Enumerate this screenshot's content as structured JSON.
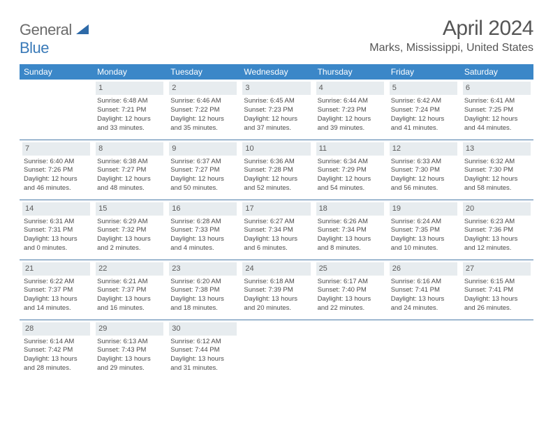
{
  "logo": {
    "word1": "General",
    "word2": "Blue"
  },
  "title": "April 2024",
  "location": "Marks, Mississippi, United States",
  "colors": {
    "header_bg": "#3b87c8",
    "header_fg": "#ffffff",
    "daynum_bg": "#e7ecef",
    "rule": "#4a7aa8",
    "text": "#4a4a4a",
    "logo_gray": "#6b6b6b",
    "logo_blue": "#3a7ab8"
  },
  "weekdays": [
    "Sunday",
    "Monday",
    "Tuesday",
    "Wednesday",
    "Thursday",
    "Friday",
    "Saturday"
  ],
  "weeks": [
    [
      null,
      {
        "n": "1",
        "sr": "6:48 AM",
        "ss": "7:21 PM",
        "dl": "12 hours and 33 minutes."
      },
      {
        "n": "2",
        "sr": "6:46 AM",
        "ss": "7:22 PM",
        "dl": "12 hours and 35 minutes."
      },
      {
        "n": "3",
        "sr": "6:45 AM",
        "ss": "7:23 PM",
        "dl": "12 hours and 37 minutes."
      },
      {
        "n": "4",
        "sr": "6:44 AM",
        "ss": "7:23 PM",
        "dl": "12 hours and 39 minutes."
      },
      {
        "n": "5",
        "sr": "6:42 AM",
        "ss": "7:24 PM",
        "dl": "12 hours and 41 minutes."
      },
      {
        "n": "6",
        "sr": "6:41 AM",
        "ss": "7:25 PM",
        "dl": "12 hours and 44 minutes."
      }
    ],
    [
      {
        "n": "7",
        "sr": "6:40 AM",
        "ss": "7:26 PM",
        "dl": "12 hours and 46 minutes."
      },
      {
        "n": "8",
        "sr": "6:38 AM",
        "ss": "7:27 PM",
        "dl": "12 hours and 48 minutes."
      },
      {
        "n": "9",
        "sr": "6:37 AM",
        "ss": "7:27 PM",
        "dl": "12 hours and 50 minutes."
      },
      {
        "n": "10",
        "sr": "6:36 AM",
        "ss": "7:28 PM",
        "dl": "12 hours and 52 minutes."
      },
      {
        "n": "11",
        "sr": "6:34 AM",
        "ss": "7:29 PM",
        "dl": "12 hours and 54 minutes."
      },
      {
        "n": "12",
        "sr": "6:33 AM",
        "ss": "7:30 PM",
        "dl": "12 hours and 56 minutes."
      },
      {
        "n": "13",
        "sr": "6:32 AM",
        "ss": "7:30 PM",
        "dl": "12 hours and 58 minutes."
      }
    ],
    [
      {
        "n": "14",
        "sr": "6:31 AM",
        "ss": "7:31 PM",
        "dl": "13 hours and 0 minutes."
      },
      {
        "n": "15",
        "sr": "6:29 AM",
        "ss": "7:32 PM",
        "dl": "13 hours and 2 minutes."
      },
      {
        "n": "16",
        "sr": "6:28 AM",
        "ss": "7:33 PM",
        "dl": "13 hours and 4 minutes."
      },
      {
        "n": "17",
        "sr": "6:27 AM",
        "ss": "7:34 PM",
        "dl": "13 hours and 6 minutes."
      },
      {
        "n": "18",
        "sr": "6:26 AM",
        "ss": "7:34 PM",
        "dl": "13 hours and 8 minutes."
      },
      {
        "n": "19",
        "sr": "6:24 AM",
        "ss": "7:35 PM",
        "dl": "13 hours and 10 minutes."
      },
      {
        "n": "20",
        "sr": "6:23 AM",
        "ss": "7:36 PM",
        "dl": "13 hours and 12 minutes."
      }
    ],
    [
      {
        "n": "21",
        "sr": "6:22 AM",
        "ss": "7:37 PM",
        "dl": "13 hours and 14 minutes."
      },
      {
        "n": "22",
        "sr": "6:21 AM",
        "ss": "7:37 PM",
        "dl": "13 hours and 16 minutes."
      },
      {
        "n": "23",
        "sr": "6:20 AM",
        "ss": "7:38 PM",
        "dl": "13 hours and 18 minutes."
      },
      {
        "n": "24",
        "sr": "6:18 AM",
        "ss": "7:39 PM",
        "dl": "13 hours and 20 minutes."
      },
      {
        "n": "25",
        "sr": "6:17 AM",
        "ss": "7:40 PM",
        "dl": "13 hours and 22 minutes."
      },
      {
        "n": "26",
        "sr": "6:16 AM",
        "ss": "7:41 PM",
        "dl": "13 hours and 24 minutes."
      },
      {
        "n": "27",
        "sr": "6:15 AM",
        "ss": "7:41 PM",
        "dl": "13 hours and 26 minutes."
      }
    ],
    [
      {
        "n": "28",
        "sr": "6:14 AM",
        "ss": "7:42 PM",
        "dl": "13 hours and 28 minutes."
      },
      {
        "n": "29",
        "sr": "6:13 AM",
        "ss": "7:43 PM",
        "dl": "13 hours and 29 minutes."
      },
      {
        "n": "30",
        "sr": "6:12 AM",
        "ss": "7:44 PM",
        "dl": "13 hours and 31 minutes."
      },
      null,
      null,
      null,
      null
    ]
  ],
  "labels": {
    "sunrise": "Sunrise:",
    "sunset": "Sunset:",
    "daylight": "Daylight:"
  }
}
